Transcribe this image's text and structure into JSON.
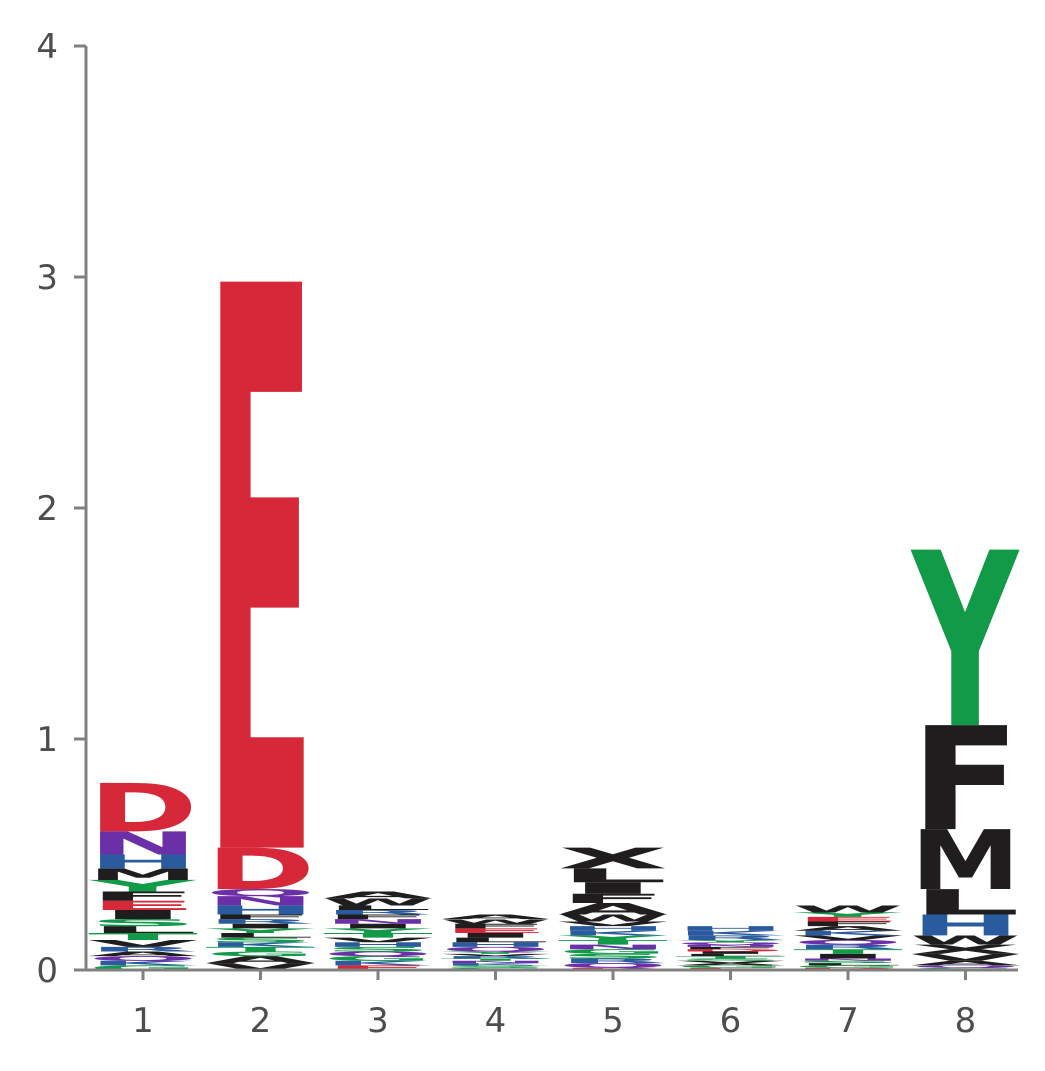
{
  "chart_data": {
    "type": "sequence-logo",
    "title": "",
    "xlabel": "",
    "ylabel": "",
    "ylim": [
      0,
      4
    ],
    "yticks": [
      0,
      1,
      2,
      3,
      4
    ],
    "xticks": [
      "1",
      "2",
      "3",
      "4",
      "5",
      "6",
      "7",
      "8"
    ],
    "grid": false,
    "colors": {
      "acidic": "#d62839",
      "polar_amide": "#6b2fa8",
      "basic": "#2a5b9e",
      "hydrophobic": "#1f1d1e",
      "polar": "#119a48",
      "small": "#1f1d1e"
    },
    "positions": [
      {
        "position": 1,
        "letters": [
          {
            "letter": "G",
            "height": 0.02,
            "color": "#119a48"
          },
          {
            "letter": "K",
            "height": 0.02,
            "color": "#2a5b9e"
          },
          {
            "letter": "Q",
            "height": 0.02,
            "color": "#6b2fa8"
          },
          {
            "letter": "A",
            "height": 0.02,
            "color": "#1f1d1e"
          },
          {
            "letter": "R",
            "height": 0.02,
            "color": "#2a5b9e"
          },
          {
            "letter": "V",
            "height": 0.03,
            "color": "#1f1d1e"
          },
          {
            "letter": "T",
            "height": 0.03,
            "color": "#119a48"
          },
          {
            "letter": "L",
            "height": 0.03,
            "color": "#1f1d1e"
          },
          {
            "letter": "S",
            "height": 0.03,
            "color": "#119a48"
          },
          {
            "letter": "I",
            "height": 0.04,
            "color": "#1f1d1e"
          },
          {
            "letter": "E",
            "height": 0.04,
            "color": "#d62839"
          },
          {
            "letter": "F",
            "height": 0.04,
            "color": "#1f1d1e"
          },
          {
            "letter": "Y",
            "height": 0.05,
            "color": "#119a48"
          },
          {
            "letter": "M",
            "height": 0.05,
            "color": "#1f1d1e"
          },
          {
            "letter": "H",
            "height": 0.06,
            "color": "#2a5b9e"
          },
          {
            "letter": "N",
            "height": 0.1,
            "color": "#6b2fa8"
          },
          {
            "letter": "D",
            "height": 0.21,
            "color": "#d62839"
          }
        ]
      },
      {
        "position": 2,
        "letters": [
          {
            "letter": "V",
            "height": 0.03,
            "color": "#1f1d1e"
          },
          {
            "letter": "A",
            "height": 0.03,
            "color": "#1f1d1e"
          },
          {
            "letter": "G",
            "height": 0.02,
            "color": "#119a48"
          },
          {
            "letter": "T",
            "height": 0.02,
            "color": "#119a48"
          },
          {
            "letter": "K",
            "height": 0.02,
            "color": "#2a5b9e"
          },
          {
            "letter": "S",
            "height": 0.02,
            "color": "#119a48"
          },
          {
            "letter": "L",
            "height": 0.02,
            "color": "#1f1d1e"
          },
          {
            "letter": "Y",
            "height": 0.02,
            "color": "#119a48"
          },
          {
            "letter": "I",
            "height": 0.02,
            "color": "#1f1d1e"
          },
          {
            "letter": "R",
            "height": 0.02,
            "color": "#2a5b9e"
          },
          {
            "letter": "F",
            "height": 0.02,
            "color": "#1f1d1e"
          },
          {
            "letter": "H",
            "height": 0.04,
            "color": "#2a5b9e"
          },
          {
            "letter": "N",
            "height": 0.04,
            "color": "#6b2fa8"
          },
          {
            "letter": "Q",
            "height": 0.03,
            "color": "#6b2fa8"
          },
          {
            "letter": "D",
            "height": 0.18,
            "color": "#d62839"
          },
          {
            "letter": "E",
            "height": 2.45,
            "color": "#d62839"
          }
        ]
      },
      {
        "position": 3,
        "letters": [
          {
            "letter": "E",
            "height": 0.02,
            "color": "#d62839"
          },
          {
            "letter": "K",
            "height": 0.02,
            "color": "#2a5b9e"
          },
          {
            "letter": "G",
            "height": 0.02,
            "color": "#119a48"
          },
          {
            "letter": "Q",
            "height": 0.02,
            "color": "#6b2fa8"
          },
          {
            "letter": "S",
            "height": 0.02,
            "color": "#119a48"
          },
          {
            "letter": "H",
            "height": 0.02,
            "color": "#2a5b9e"
          },
          {
            "letter": "V",
            "height": 0.02,
            "color": "#1f1d1e"
          },
          {
            "letter": "T",
            "height": 0.02,
            "color": "#119a48"
          },
          {
            "letter": "Y",
            "height": 0.02,
            "color": "#119a48"
          },
          {
            "letter": "I",
            "height": 0.02,
            "color": "#1f1d1e"
          },
          {
            "letter": "N",
            "height": 0.02,
            "color": "#6b2fa8"
          },
          {
            "letter": "F",
            "height": 0.02,
            "color": "#1f1d1e"
          },
          {
            "letter": "R",
            "height": 0.02,
            "color": "#2a5b9e"
          },
          {
            "letter": "L",
            "height": 0.02,
            "color": "#1f1d1e"
          },
          {
            "letter": "W",
            "height": 0.03,
            "color": "#1f1d1e"
          },
          {
            "letter": "A",
            "height": 0.03,
            "color": "#1f1d1e"
          }
        ]
      },
      {
        "position": 4,
        "letters": [
          {
            "letter": "G",
            "height": 0.01,
            "color": "#119a48"
          },
          {
            "letter": "S",
            "height": 0.01,
            "color": "#119a48"
          },
          {
            "letter": "K",
            "height": 0.01,
            "color": "#2a5b9e"
          },
          {
            "letter": "N",
            "height": 0.01,
            "color": "#6b2fa8"
          },
          {
            "letter": "T",
            "height": 0.01,
            "color": "#119a48"
          },
          {
            "letter": "R",
            "height": 0.01,
            "color": "#2a5b9e"
          },
          {
            "letter": "V",
            "height": 0.01,
            "color": "#1f1d1e"
          },
          {
            "letter": "Y",
            "height": 0.01,
            "color": "#119a48"
          },
          {
            "letter": "Q",
            "height": 0.02,
            "color": "#6b2fa8"
          },
          {
            "letter": "H",
            "height": 0.02,
            "color": "#2a5b9e"
          },
          {
            "letter": "L",
            "height": 0.02,
            "color": "#1f1d1e"
          },
          {
            "letter": "I",
            "height": 0.02,
            "color": "#1f1d1e"
          },
          {
            "letter": "E",
            "height": 0.02,
            "color": "#d62839"
          },
          {
            "letter": "F",
            "height": 0.02,
            "color": "#1f1d1e"
          },
          {
            "letter": "W",
            "height": 0.02,
            "color": "#1f1d1e"
          },
          {
            "letter": "A",
            "height": 0.02,
            "color": "#1f1d1e"
          }
        ]
      },
      {
        "position": 5,
        "letters": [
          {
            "letter": "E",
            "height": 0.01,
            "color": "#d62839"
          },
          {
            "letter": "Q",
            "height": 0.02,
            "color": "#6b2fa8"
          },
          {
            "letter": "R",
            "height": 0.02,
            "color": "#2a5b9e"
          },
          {
            "letter": "S",
            "height": 0.02,
            "color": "#119a48"
          },
          {
            "letter": "G",
            "height": 0.02,
            "color": "#119a48"
          },
          {
            "letter": "N",
            "height": 0.02,
            "color": "#6b2fa8"
          },
          {
            "letter": "T",
            "height": 0.02,
            "color": "#119a48"
          },
          {
            "letter": "Y",
            "height": 0.02,
            "color": "#119a48"
          },
          {
            "letter": "K",
            "height": 0.02,
            "color": "#2a5b9e"
          },
          {
            "letter": "H",
            "height": 0.02,
            "color": "#2a5b9e"
          },
          {
            "letter": "V",
            "height": 0.02,
            "color": "#1f1d1e"
          },
          {
            "letter": "W",
            "height": 0.03,
            "color": "#1f1d1e"
          },
          {
            "letter": "A",
            "height": 0.05,
            "color": "#1f1d1e"
          },
          {
            "letter": "F",
            "height": 0.04,
            "color": "#1f1d1e"
          },
          {
            "letter": "I",
            "height": 0.05,
            "color": "#1f1d1e"
          },
          {
            "letter": "L",
            "height": 0.06,
            "color": "#1f1d1e"
          },
          {
            "letter": "X",
            "height": 0.09,
            "color": "#1f1d1e"
          }
        ]
      },
      {
        "position": 6,
        "letters": [
          {
            "letter": "E",
            "height": 0.01,
            "color": "#d62839"
          },
          {
            "letter": "G",
            "height": 0.01,
            "color": "#119a48"
          },
          {
            "letter": "A",
            "height": 0.01,
            "color": "#1f1d1e"
          },
          {
            "letter": "V",
            "height": 0.01,
            "color": "#1f1d1e"
          },
          {
            "letter": "S",
            "height": 0.01,
            "color": "#119a48"
          },
          {
            "letter": "T",
            "height": 0.01,
            "color": "#119a48"
          },
          {
            "letter": "L",
            "height": 0.01,
            "color": "#1f1d1e"
          },
          {
            "letter": "I",
            "height": 0.01,
            "color": "#1f1d1e"
          },
          {
            "letter": "D",
            "height": 0.01,
            "color": "#d62839"
          },
          {
            "letter": "F",
            "height": 0.01,
            "color": "#1f1d1e"
          },
          {
            "letter": "N",
            "height": 0.01,
            "color": "#6b2fa8"
          },
          {
            "letter": "Q",
            "height": 0.01,
            "color": "#6b2fa8"
          },
          {
            "letter": "Y",
            "height": 0.01,
            "color": "#119a48"
          },
          {
            "letter": "R",
            "height": 0.02,
            "color": "#2a5b9e"
          },
          {
            "letter": "K",
            "height": 0.02,
            "color": "#2a5b9e"
          },
          {
            "letter": "H",
            "height": 0.02,
            "color": "#2a5b9e"
          }
        ]
      },
      {
        "position": 7,
        "letters": [
          {
            "letter": "D",
            "height": 0.01,
            "color": "#d62839"
          },
          {
            "letter": "G",
            "height": 0.01,
            "color": "#119a48"
          },
          {
            "letter": "L",
            "height": 0.01,
            "color": "#1f1d1e"
          },
          {
            "letter": "S",
            "height": 0.01,
            "color": "#119a48"
          },
          {
            "letter": "N",
            "height": 0.01,
            "color": "#6b2fa8"
          },
          {
            "letter": "I",
            "height": 0.02,
            "color": "#1f1d1e"
          },
          {
            "letter": "T",
            "height": 0.02,
            "color": "#119a48"
          },
          {
            "letter": "R",
            "height": 0.02,
            "color": "#2a5b9e"
          },
          {
            "letter": "Q",
            "height": 0.02,
            "color": "#6b2fa8"
          },
          {
            "letter": "V",
            "height": 0.02,
            "color": "#1f1d1e"
          },
          {
            "letter": "K",
            "height": 0.02,
            "color": "#2a5b9e"
          },
          {
            "letter": "A",
            "height": 0.02,
            "color": "#1f1d1e"
          },
          {
            "letter": "F",
            "height": 0.02,
            "color": "#1f1d1e"
          },
          {
            "letter": "E",
            "height": 0.02,
            "color": "#d62839"
          },
          {
            "letter": "Y",
            "height": 0.02,
            "color": "#119a48"
          },
          {
            "letter": "W",
            "height": 0.03,
            "color": "#1f1d1e"
          }
        ]
      },
      {
        "position": 8,
        "letters": [
          {
            "letter": "G",
            "height": 0.01,
            "color": "#119a48"
          },
          {
            "letter": "Q",
            "height": 0.01,
            "color": "#6b2fa8"
          },
          {
            "letter": "A",
            "height": 0.02,
            "color": "#1f1d1e"
          },
          {
            "letter": "V",
            "height": 0.03,
            "color": "#1f1d1e"
          },
          {
            "letter": "X",
            "height": 0.04,
            "color": "#1f1d1e"
          },
          {
            "letter": "W",
            "height": 0.04,
            "color": "#1f1d1e"
          },
          {
            "letter": "H",
            "height": 0.09,
            "color": "#2a5b9e"
          },
          {
            "letter": "L",
            "height": 0.11,
            "color": "#1f1d1e"
          },
          {
            "letter": "M",
            "height": 0.26,
            "color": "#1f1d1e"
          },
          {
            "letter": "F",
            "height": 0.45,
            "color": "#1f1d1e"
          },
          {
            "letter": "Y",
            "height": 0.76,
            "color": "#119a48"
          }
        ]
      }
    ]
  }
}
